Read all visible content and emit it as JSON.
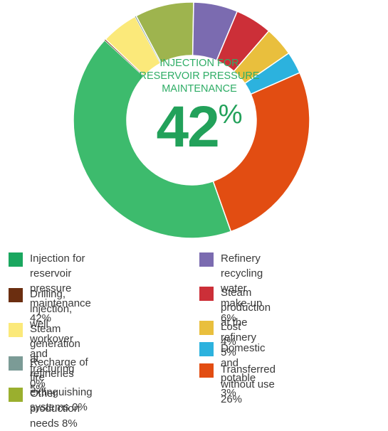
{
  "center": {
    "title": "INJECTION FOR\nRESERVOIR PRESSURE\nMAINTENANCE",
    "value": "42",
    "unit": "%"
  },
  "chart_data": {
    "type": "pie",
    "donut": true,
    "title": "",
    "slices": [
      {
        "label": "Injection for reservoir pressure maintenance",
        "value": 42,
        "color": "#3dbb6d"
      },
      {
        "label": "Drilling, injection, well workover and fracturing",
        "value": 0,
        "color": "#6b2e10"
      },
      {
        "label": "Steam generation at refineries",
        "value": 5,
        "color": "#fbe97a"
      },
      {
        "label": "Recharge of fire extinguishing systems",
        "value": 0,
        "color": "#7b9b96"
      },
      {
        "label": "Other production needs",
        "value": 8,
        "color": "#9eb44e"
      },
      {
        "label": "Refinery recycling water make-up",
        "value": 6,
        "color": "#7b6bb0"
      },
      {
        "label": "Steam production at the refinery",
        "value": 5,
        "color": "#cc2f38"
      },
      {
        "label": "Lost",
        "value": 4,
        "color": "#e9bf3d"
      },
      {
        "label": "Domestic and potable",
        "value": 3,
        "color": "#2cb2de"
      },
      {
        "label": "Transferred without use",
        "value": 26,
        "color": "#e24d12"
      }
    ]
  },
  "legend": {
    "left": [
      {
        "label": "Injection for reservoir pressure\nmaintenance 42%",
        "color": "#1aa75f"
      },
      {
        "label": "Drilling, injection, well workover\nand fracturing 0%",
        "color": "#6b2e10"
      },
      {
        "label": "Steam generation\nat refineries 5%",
        "color": "#fbe97a"
      },
      {
        "label": "Recharge of fire extinguishing\nsystems 0%",
        "color": "#7b9b96"
      },
      {
        "label": "Other production needs  8%",
        "color": "#9aaf2e"
      }
    ],
    "right": [
      {
        "label": "Refinery recycling water\nmake-up 6%",
        "color": "#7b6bb0"
      },
      {
        "label": "Steam production\nat the refinery 5%",
        "color": "#cc2f38"
      },
      {
        "label": " Lost 4%",
        "color": "#e9bf3d"
      },
      {
        "label": " Domestic and potable 3%",
        "color": "#2cb2de"
      },
      {
        "label": " Transferred\n without use 26%",
        "color": "#e24d12"
      }
    ]
  }
}
